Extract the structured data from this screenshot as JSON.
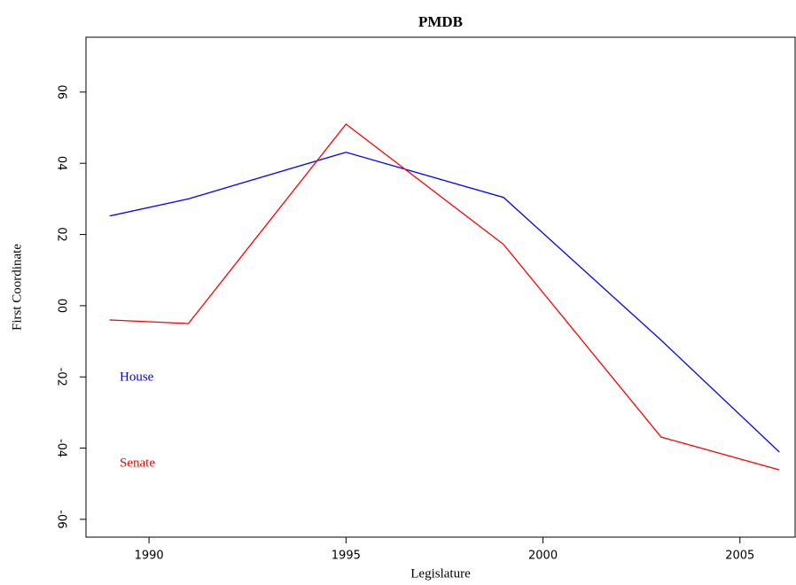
{
  "chart_data": {
    "type": "line",
    "title": "PMDB",
    "x_label": "Legislature",
    "y_label": "First Coordinate",
    "x": [
      1989,
      1991,
      1995,
      1999,
      2003,
      2006
    ],
    "series": [
      {
        "name": "House",
        "color": "#0000ff",
        "values": [
          0.252,
          0.3,
          0.431,
          0.304,
          -0.097,
          -0.411
        ]
      },
      {
        "name": "Senate",
        "color": "#ff0000",
        "values": [
          -0.04,
          -0.05,
          0.51,
          0.172,
          -0.369,
          -0.461
        ]
      }
    ],
    "xlim": [
      1988.4,
      2006.4
    ],
    "xticks": [
      1990,
      1995,
      2000,
      2005
    ],
    "ylim": [
      -0.65,
      0.754
    ],
    "yticks": [
      {
        "value": -0.6,
        "label": "-06"
      },
      {
        "value": -0.4,
        "label": "-04"
      },
      {
        "value": -0.2,
        "label": "-02"
      },
      {
        "value": 0,
        "label": "00"
      },
      {
        "value": 0.2,
        "label": "02"
      },
      {
        "value": 0.4,
        "label": "04"
      },
      {
        "value": 0.6,
        "label": "06"
      }
    ],
    "grid": false,
    "legend": "bottom-left"
  }
}
